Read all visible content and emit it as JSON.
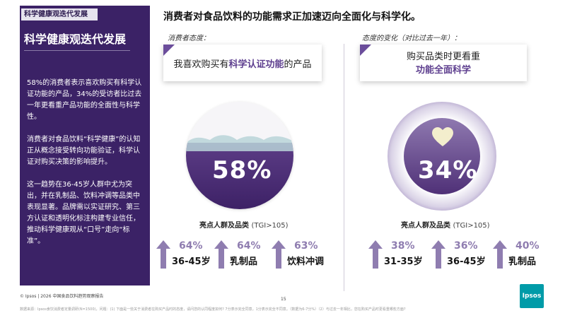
{
  "sidebar": {
    "tag": "科学健康观迭代发展",
    "title": "科学健康观迭代发展",
    "paragraphs": [
      "58%的消费者表示喜欢购买有科学认证功能的产品，34%的受访者比过去一年更看重产品功能的全面性与科学性。",
      "消费者对食品饮料“科学健康”的认知正从概念接受转向功能验证，科学认证对购买决策的影响提升。",
      "这一趋势在36-45岁人群中尤为突出，并在乳制品、饮料冲调等品类中表现显著。品牌需以实证研究、第三方认证和透明化标注构建专业信任，推动科学健康观从“口号”走向“标准”。"
    ]
  },
  "headline": "消费者对食品饮料的功能需求正加速迈向全面化与科学化。",
  "left_col": {
    "label": "消费者态度：",
    "statement_pre": "我喜欢购买有",
    "statement_accent": "科学认证功能",
    "statement_post": "的产品",
    "percent": "58%",
    "section_title": "亮点人群及品类",
    "tgi": "(TGI>105)",
    "stats": [
      {
        "pct": "64%",
        "label": "36-45岁"
      },
      {
        "pct": "64%",
        "label": "乳制品"
      },
      {
        "pct": "63%",
        "label": "饮料冲调"
      }
    ]
  },
  "right_col": {
    "label": "态度的变化（对比过去一年）：",
    "statement_line1": "购买品类时更看重",
    "statement_line2": "功能全面科学",
    "percent": "34%",
    "section_title": "亮点人群及品类",
    "tgi": "(TGI>105)",
    "stats": [
      {
        "pct": "38%",
        "label": "31-35岁"
      },
      {
        "pct": "36%",
        "label": "36-45岁"
      },
      {
        "pct": "40%",
        "label": "乳制品"
      }
    ]
  },
  "footer": {
    "copyright": "© Ipsos | 2026 中国食品饮料趋势观察报告",
    "page": "15",
    "source": "数据来源：Ipsos食饮消费者定量调研(N=1500)，问题：(1) 下面是一些关于消费者在购买产品时的态度，请问您的认同程度如何? 7分表示完全同意，1分表示完全不同意。（数据为6-7分%）（2）与过去一年相比，您在购买产品时更看重哪些方面?",
    "logo": "Ipsos"
  },
  "colors": {
    "panel": "#3b2266",
    "accent": "#5e3f8f",
    "stat_pct": "#8f7db0"
  },
  "icons": [
    "up-arrow-icon",
    "heart-icon"
  ]
}
